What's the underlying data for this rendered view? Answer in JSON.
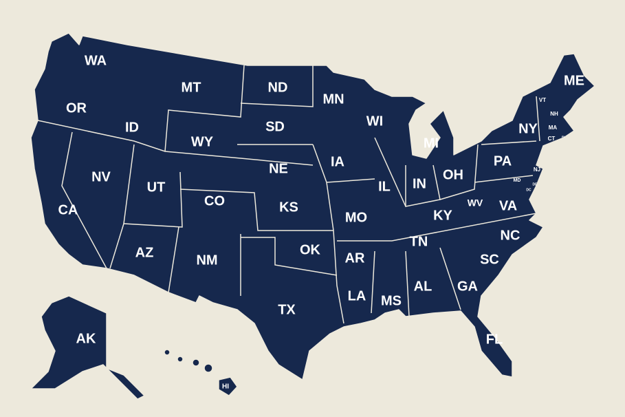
{
  "colors": {
    "background": "#ede9dc",
    "land": "#16284d",
    "label": "#ffffff",
    "borders": "#ede9dc"
  },
  "states": [
    {
      "code": "WA"
    },
    {
      "code": "OR"
    },
    {
      "code": "ID"
    },
    {
      "code": "MT"
    },
    {
      "code": "ND"
    },
    {
      "code": "SD"
    },
    {
      "code": "WY"
    },
    {
      "code": "NE"
    },
    {
      "code": "NV"
    },
    {
      "code": "UT"
    },
    {
      "code": "CO"
    },
    {
      "code": "KS"
    },
    {
      "code": "CA"
    },
    {
      "code": "AZ"
    },
    {
      "code": "NM"
    },
    {
      "code": "OK"
    },
    {
      "code": "TX"
    },
    {
      "code": "MN"
    },
    {
      "code": "WI"
    },
    {
      "code": "MI"
    },
    {
      "code": "IA"
    },
    {
      "code": "IL"
    },
    {
      "code": "IN"
    },
    {
      "code": "OH"
    },
    {
      "code": "PA"
    },
    {
      "code": "NY"
    },
    {
      "code": "ME"
    },
    {
      "code": "MO"
    },
    {
      "code": "KY"
    },
    {
      "code": "WV"
    },
    {
      "code": "VA"
    },
    {
      "code": "AR"
    },
    {
      "code": "TN"
    },
    {
      "code": "NC"
    },
    {
      "code": "SC"
    },
    {
      "code": "LA"
    },
    {
      "code": "MS"
    },
    {
      "code": "AL"
    },
    {
      "code": "GA"
    },
    {
      "code": "FL"
    },
    {
      "code": "AK"
    },
    {
      "code": "HI"
    },
    {
      "code": "VT"
    },
    {
      "code": "NH"
    },
    {
      "code": "MA"
    },
    {
      "code": "CT"
    },
    {
      "code": "RI"
    },
    {
      "code": "NJ"
    },
    {
      "code": "MD"
    },
    {
      "code": "DE"
    },
    {
      "code": "DC"
    }
  ]
}
